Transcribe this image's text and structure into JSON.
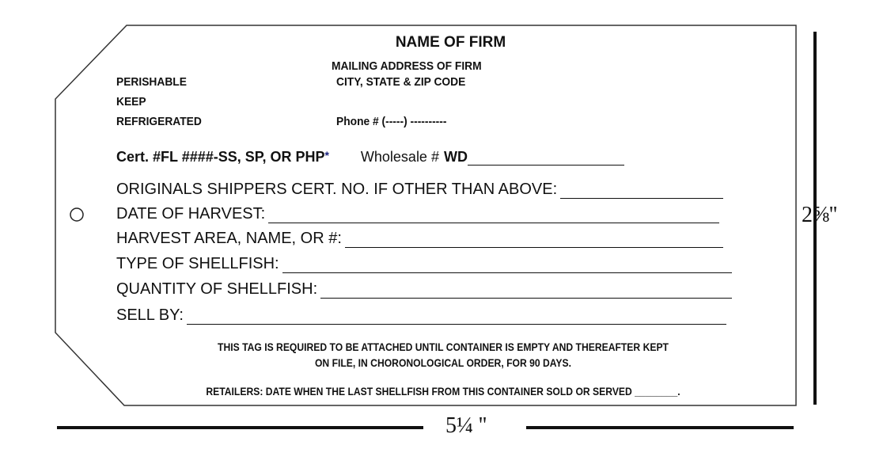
{
  "firm": {
    "name": "NAME OF FIRM",
    "address": "MAILING ADDRESS OF FIRM",
    "city": "CITY, STATE & ZIP CODE",
    "phone": "Phone # (-----) ----------"
  },
  "warning": [
    "PERISHABLE",
    "KEEP",
    "REFRIGERATED"
  ],
  "cert": {
    "label": "Cert.  # ",
    "value": "FL ####-SS, SP, OR PHP",
    "asterisk": "*",
    "wholesale_label": "Wholesale # ",
    "wholesale_value": "WD"
  },
  "fields": [
    "ORIGINALS SHIPPERS CERT. NO. IF OTHER THAN ABOVE:",
    "DATE OF HARVEST:",
    "HARVEST AREA, NAME, OR #:",
    "TYPE OF SHELLFISH:",
    "QUANTITY OF SHELLFISH:",
    "SELL BY:"
  ],
  "notice": [
    "THIS TAG IS REQUIRED TO BE ATTACHED  UNTIL CONTAINER IS EMPTY AND THEREAFTER KEPT",
    "ON FILE, IN CHORONOLOGICAL ORDER, FOR 90 DAYS."
  ],
  "retailers": "RETAILERS: DATE WHEN THE LAST SHELLFISH FROM THIS CONTAINER SOLD OR SERVED ________.",
  "dimensions": {
    "height": "2⅝''",
    "width": "5¼ ''"
  },
  "colors": {
    "asterisk": "#1a237e",
    "ink": "#111111"
  }
}
